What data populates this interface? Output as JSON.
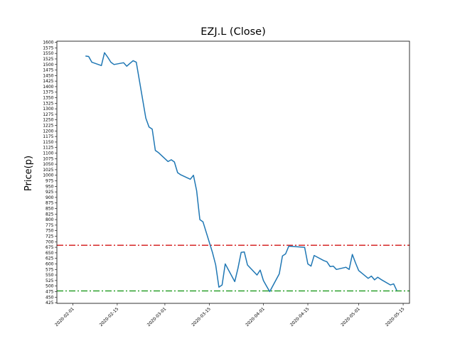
{
  "chart_data": {
    "type": "line",
    "title": "EZJ.L (Close)",
    "xlabel": "",
    "ylabel": "Price(p)",
    "xlim": [
      "2020-01-27",
      "2020-05-17"
    ],
    "ylim": [
      422,
      1605
    ],
    "grid": false,
    "x_ticks": [
      "2020-02-01",
      "2020-02-15",
      "2020-03-01",
      "2020-03-15",
      "2020-04-01",
      "2020-04-15",
      "2020-05-01",
      "2020-05-15"
    ],
    "y_ticks": [
      "425",
      "450",
      "475",
      "500",
      "525",
      "550",
      "575",
      "600",
      "625",
      "650",
      "675",
      "700",
      "725",
      "750",
      "775",
      "800",
      "825",
      "850",
      "875",
      "900",
      "925",
      "950",
      "975",
      "1000",
      "1025",
      "1050",
      "1075",
      "1100",
      "1125",
      "1150",
      "1175",
      "1200",
      "1225",
      "1250",
      "1275",
      "1300",
      "1325",
      "1350",
      "1375",
      "1400",
      "1425",
      "1450",
      "1475",
      "1500",
      "1525",
      "1550",
      "1575",
      "1600"
    ],
    "series": [
      {
        "name": "",
        "color": "#1f77b4",
        "x": [
          "2020-02-05",
          "2020-02-06",
          "2020-02-07",
          "2020-02-10",
          "2020-02-11",
          "2020-02-12",
          "2020-02-13",
          "2020-02-14",
          "2020-02-17",
          "2020-02-18",
          "2020-02-19",
          "2020-02-20",
          "2020-02-21",
          "2020-02-24",
          "2020-02-25",
          "2020-02-26",
          "2020-02-27",
          "2020-02-28",
          "2020-03-02",
          "2020-03-03",
          "2020-03-04",
          "2020-03-05",
          "2020-03-06",
          "2020-03-09",
          "2020-03-10",
          "2020-03-11",
          "2020-03-12",
          "2020-03-13",
          "2020-03-16",
          "2020-03-17",
          "2020-03-18",
          "2020-03-19",
          "2020-03-20",
          "2020-03-23",
          "2020-03-24",
          "2020-03-25",
          "2020-03-26",
          "2020-03-27",
          "2020-03-30",
          "2020-03-31",
          "2020-04-01",
          "2020-04-02",
          "2020-04-03",
          "2020-04-06",
          "2020-04-07",
          "2020-04-08",
          "2020-04-09",
          "2020-04-14",
          "2020-04-15",
          "2020-04-16",
          "2020-04-17",
          "2020-04-20",
          "2020-04-21",
          "2020-04-22",
          "2020-04-23",
          "2020-04-24",
          "2020-04-27",
          "2020-04-28",
          "2020-04-29",
          "2020-04-30",
          "2020-05-01",
          "2020-05-04",
          "2020-05-05",
          "2020-05-06",
          "2020-05-07",
          "2020-05-08",
          "2020-05-11",
          "2020-05-12",
          "2020-05-13"
        ],
        "y": [
          1538,
          1536,
          1510,
          1495,
          1553,
          1533,
          1510,
          1500,
          1508,
          1492,
          1505,
          1517,
          1510,
          1258,
          1218,
          1208,
          1112,
          1102,
          1062,
          1070,
          1060,
          1012,
          1002,
          982,
          1000,
          930,
          800,
          790,
          650,
          595,
          495,
          505,
          600,
          520,
          580,
          652,
          654,
          595,
          550,
          572,
          525,
          500,
          475,
          555,
          636,
          645,
          680,
          675,
          600,
          590,
          638,
          615,
          610,
          588,
          590,
          575,
          585,
          575,
          643,
          605,
          570,
          535,
          545,
          528,
          540,
          530,
          505,
          510,
          480
        ]
      }
    ],
    "reference_lines": [
      {
        "value": 684,
        "color": "#d62728",
        "style": "dash-dot"
      },
      {
        "value": 478,
        "color": "#2ca02c",
        "style": "dash-dot"
      }
    ]
  }
}
